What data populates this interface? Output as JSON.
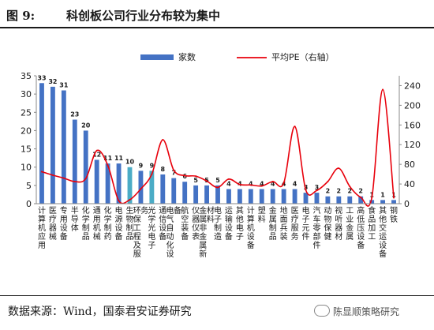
{
  "header": {
    "figure_label": "图 9:",
    "title": "科创板公司行业分布较为集中"
  },
  "footer": {
    "source": "数据来源：Wind，国泰君安证券研究",
    "watermark": "陈显顺策略研究"
  },
  "colors": {
    "bar_default": "#4472c4",
    "bar_highlight": "#4bacc6",
    "line": "#e8000b",
    "text": "#1a1a1a"
  },
  "chart_data": {
    "type": "bar",
    "legend": {
      "position": "top",
      "entries": [
        "家数",
        "平均PE（右轴）"
      ]
    },
    "categories": [
      "计算机应用",
      "医疗器械",
      "专用设备",
      "半导体",
      "化学制品",
      "通用机械",
      "化学制药",
      "电源设备",
      "生物制品",
      "环保工程及服务",
      "光学光电子",
      "通信设备",
      "电气自动化设备",
      "航空装备",
      "仪器仪表",
      "金属非金属新材料",
      "电子制造",
      "运输设备",
      "其他电子",
      "计算机设备",
      "塑料",
      "金属制品",
      "地面兵装",
      "医疗服务",
      "电子元件",
      "汽车零部件",
      "动物保健",
      "视听器材",
      "工业金属",
      "高低压设备",
      "食品加工",
      "其他交运设备",
      "钢铁"
    ],
    "series": [
      {
        "name": "家数",
        "axis": "left",
        "type": "bar",
        "values": [
          33,
          32,
          31,
          23,
          20,
          12,
          11,
          11,
          10,
          9,
          9,
          8,
          7,
          6,
          5,
          5,
          5,
          4,
          4,
          4,
          4,
          4,
          4,
          4,
          3,
          3,
          2,
          2,
          2,
          2,
          1,
          1,
          1
        ],
        "highlighted_categories": [
          "生物制品",
          "光学光电子"
        ]
      },
      {
        "name": "平均PE（右轴）",
        "axis": "right",
        "type": "line",
        "values": [
          65,
          58,
          52,
          45,
          51,
          108,
          78,
          6,
          8,
          30,
          60,
          130,
          68,
          57,
          56,
          46,
          33,
          50,
          39,
          38,
          36,
          45,
          42,
          157,
          28,
          27,
          45,
          72,
          35,
          13,
          12,
          232,
          12
        ]
      }
    ],
    "y_left": {
      "min": 0,
      "max": 35,
      "ticks": [
        0,
        5,
        10,
        15,
        20,
        25,
        30,
        35
      ]
    },
    "y_right": {
      "min": 0,
      "max": 260,
      "ticks": [
        0,
        40,
        80,
        120,
        160,
        200,
        240
      ]
    },
    "grid": false
  }
}
